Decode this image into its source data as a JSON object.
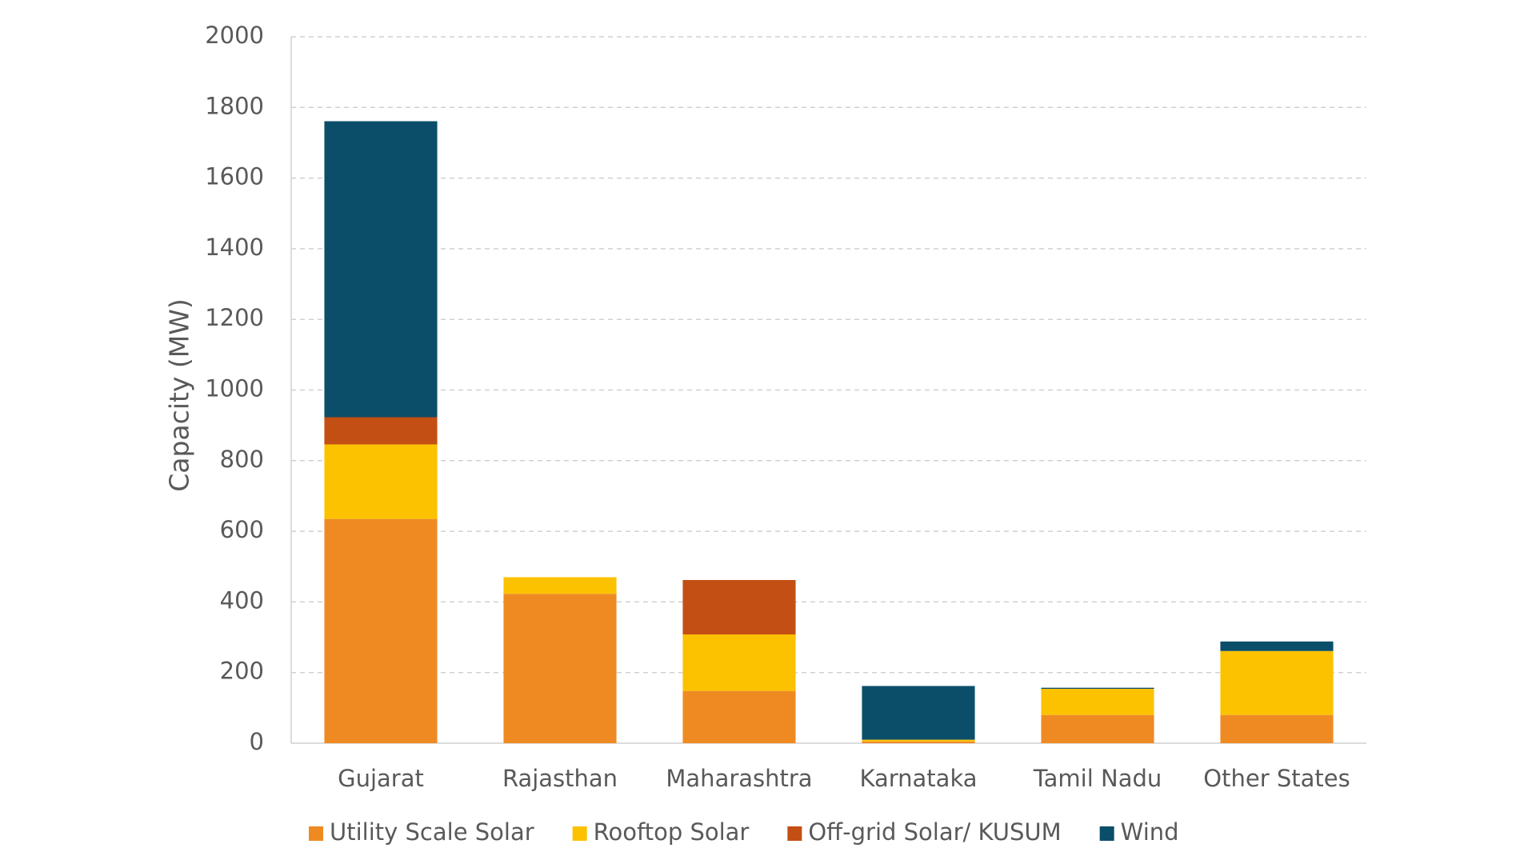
{
  "chart_data": {
    "type": "stacked_bar",
    "y_label": "Capacity (MW)",
    "categories": [
      "Gujarat",
      "Rajasthan",
      "Maharashtra",
      "Karnataka",
      "Tamil Nadu",
      "Other States"
    ],
    "series": [
      {
        "name": "Utility Scale Solar",
        "color": "#ef8a23",
        "values": [
          635,
          423,
          148,
          5,
          80,
          80
        ]
      },
      {
        "name": "Rooftop Solar",
        "color": "#fcc200",
        "values": [
          211,
          47,
          160,
          5,
          74,
          181
        ]
      },
      {
        "name": "Off-grid Solar/ KUSUM",
        "color": "#c34f14",
        "values": [
          77,
          0,
          154,
          0,
          0,
          0
        ]
      },
      {
        "name": "Wind",
        "color": "#0b4e6a",
        "values": [
          838,
          0,
          0,
          152,
          3,
          27
        ]
      }
    ],
    "ylim": [
      0,
      2000
    ],
    "yticks": [
      0,
      200,
      400,
      600,
      800,
      1000,
      1200,
      1400,
      1600,
      1800,
      2000
    ],
    "grid": true,
    "legend": "bottom"
  }
}
